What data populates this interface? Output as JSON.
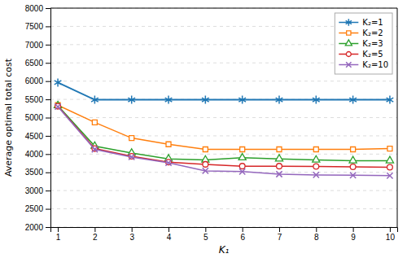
{
  "chart_data": {
    "type": "line",
    "xlabel": "K₁",
    "ylabel": "Average optimal total cost",
    "x": [
      1,
      2,
      3,
      4,
      5,
      6,
      7,
      8,
      9,
      10
    ],
    "series": [
      {
        "name": "K₂=1",
        "marker": "asterisk",
        "values": [
          5960,
          5490,
          5490,
          5490,
          5490,
          5490,
          5490,
          5490,
          5490,
          5490
        ]
      },
      {
        "name": "K₂=2",
        "marker": "square",
        "values": [
          5340,
          4870,
          4440,
          4270,
          4130,
          4130,
          4130,
          4130,
          4130,
          4150
        ]
      },
      {
        "name": "K₂=3",
        "marker": "triangle",
        "values": [
          5330,
          4220,
          4030,
          3870,
          3840,
          3900,
          3870,
          3840,
          3820,
          3820
        ]
      },
      {
        "name": "K₂=5",
        "marker": "circle",
        "values": [
          5310,
          4150,
          3940,
          3780,
          3720,
          3670,
          3670,
          3660,
          3650,
          3640
        ]
      },
      {
        "name": "K₂=10",
        "marker": "x",
        "values": [
          5300,
          4130,
          3920,
          3760,
          3540,
          3520,
          3450,
          3430,
          3420,
          3410
        ]
      }
    ],
    "xlim": [
      0.8,
      10.2
    ],
    "ylim": [
      2000,
      8000
    ],
    "xticks": [
      1,
      2,
      3,
      4,
      5,
      6,
      7,
      8,
      9,
      10
    ],
    "yticks": [
      2000,
      2500,
      3000,
      3500,
      4000,
      4500,
      5000,
      5500,
      6000,
      6500,
      7000,
      7500,
      8000
    ],
    "grid": "y",
    "legend": "upper right"
  }
}
